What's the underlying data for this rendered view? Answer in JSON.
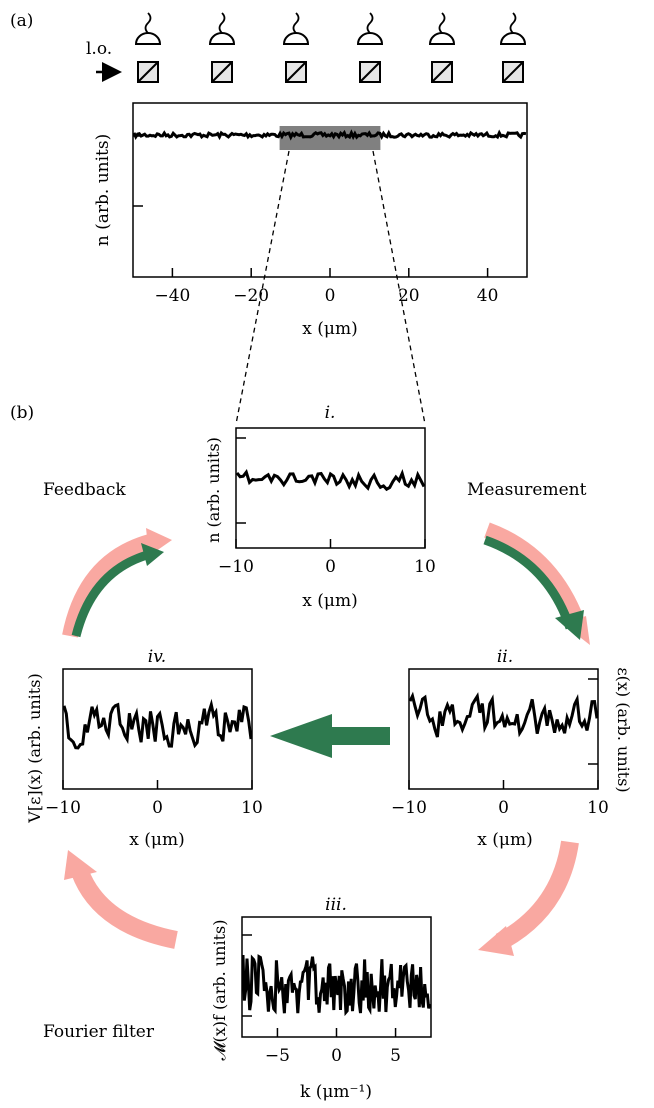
{
  "panel_a": {
    "label": "(a)",
    "lo_label": "l.o.",
    "detector_count": 6,
    "plot": {
      "ylabel": "n (arb. units)",
      "xlabel": "x (μm)",
      "xlim": [
        -50,
        50
      ],
      "xticks": [
        -40,
        -20,
        0,
        20,
        40
      ],
      "xtick_labels": [
        "−40",
        "−20",
        "0",
        "20",
        "40"
      ],
      "highlight_range": [
        -10,
        10
      ]
    }
  },
  "panel_b": {
    "label": "(b)",
    "step_labels": {
      "feedback": "Feedback",
      "measurement": "Measurement",
      "fourier_filter": "Fourier filter"
    },
    "colors": {
      "pink": "#f9a8a1",
      "green": "#2e7a4f"
    },
    "plot_i": {
      "title": "i.",
      "ylabel": "n (arb. units)",
      "xlabel": "x (μm)",
      "xticks": [
        -10,
        0,
        10
      ],
      "xtick_labels": [
        "−10",
        "0",
        "10"
      ]
    },
    "plot_ii": {
      "title": "ii.",
      "ylabel": "ε(x) (arb. units)",
      "xlabel": "x (μm)",
      "xticks": [
        -10,
        0,
        10
      ],
      "xtick_labels": [
        "−10",
        "0",
        "10"
      ]
    },
    "plot_iii": {
      "title": "iii.",
      "ylabel": "𝓜(x)f (arb. units)",
      "xlabel": "k (μm⁻¹)",
      "xticks": [
        -5,
        0,
        5
      ],
      "xtick_labels": [
        "−5",
        "0",
        "5"
      ]
    },
    "plot_iv": {
      "title": "iv.",
      "ylabel": "V[ε](x) (arb. units)",
      "xlabel": "x (μm)",
      "xticks": [
        -10,
        0,
        10
      ],
      "xtick_labels": [
        "−10",
        "0",
        "10"
      ]
    }
  }
}
